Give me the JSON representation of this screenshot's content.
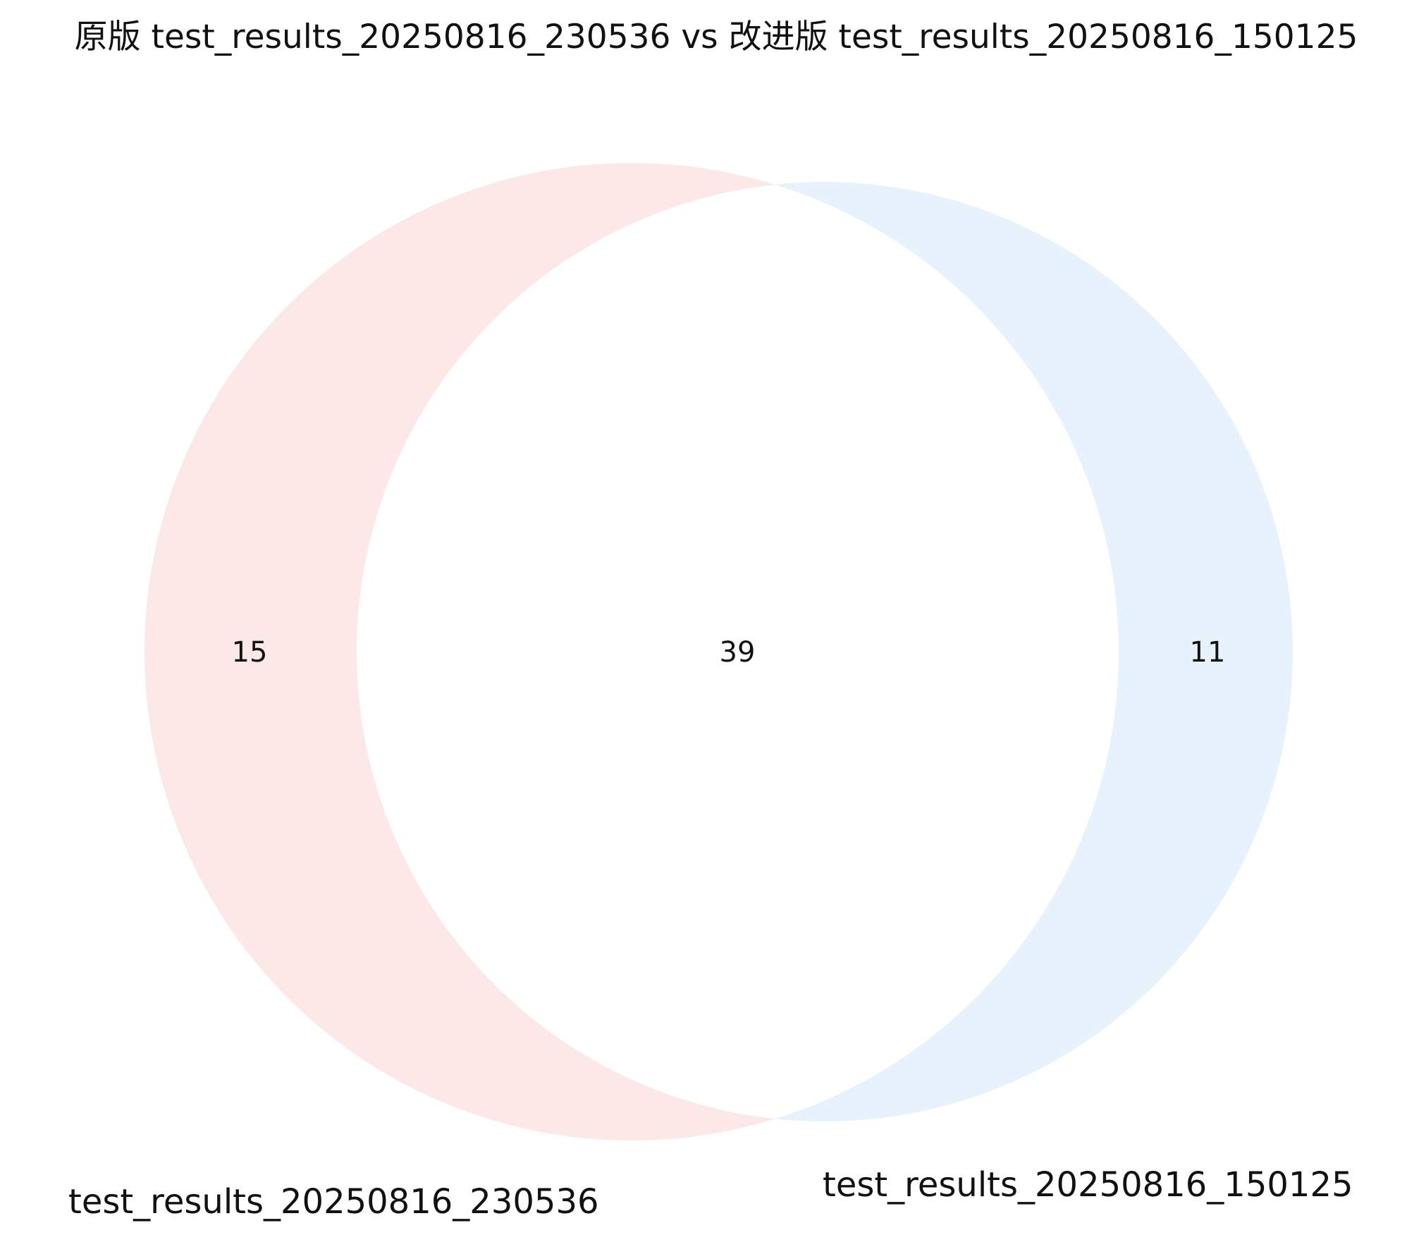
{
  "chart_data": {
    "type": "venn",
    "title": "原版 test_results_20250816_230536 vs 改进版 test_results_20250816_150125",
    "sets": [
      {
        "name": "test_results_20250816_230536",
        "only_count": 15,
        "color": "#fde8e8"
      },
      {
        "name": "test_results_20250816_150125",
        "only_count": 11,
        "color": "#e8f2fd"
      }
    ],
    "intersection_count": 39,
    "intersection_color": "#ffffff"
  }
}
